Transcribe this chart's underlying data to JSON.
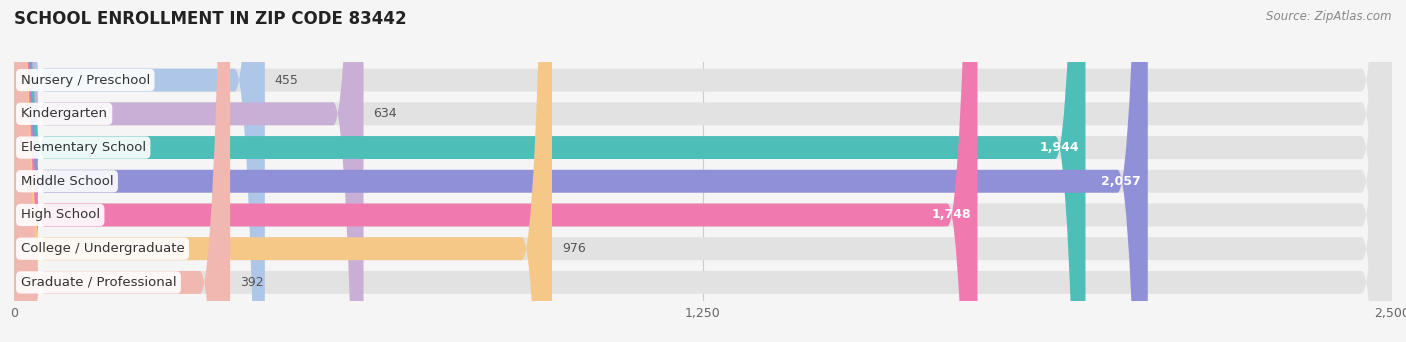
{
  "title": "SCHOOL ENROLLMENT IN ZIP CODE 83442",
  "source": "Source: ZipAtlas.com",
  "categories": [
    "Nursery / Preschool",
    "Kindergarten",
    "Elementary School",
    "Middle School",
    "High School",
    "College / Undergraduate",
    "Graduate / Professional"
  ],
  "values": [
    455,
    634,
    1944,
    2057,
    1748,
    976,
    392
  ],
  "bar_colors": [
    "#aec6e8",
    "#c9aed6",
    "#4dbfb8",
    "#9090d8",
    "#f07ab0",
    "#f5c888",
    "#f0b8b0"
  ],
  "background_color": "#f5f5f5",
  "bar_bg_color": "#e2e2e2",
  "xlim": [
    0,
    2500
  ],
  "xticks": [
    0,
    1250,
    2500
  ],
  "bar_height": 0.68,
  "label_fontsize": 9.5,
  "value_fontsize": 9,
  "title_fontsize": 12
}
